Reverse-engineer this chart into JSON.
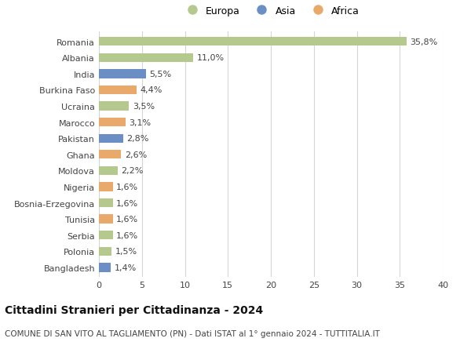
{
  "countries": [
    "Romania",
    "Albania",
    "India",
    "Burkina Faso",
    "Ucraina",
    "Marocco",
    "Pakistan",
    "Ghana",
    "Moldova",
    "Nigeria",
    "Bosnia-Erzegovina",
    "Tunisia",
    "Serbia",
    "Polonia",
    "Bangladesh"
  ],
  "values": [
    35.8,
    11.0,
    5.5,
    4.4,
    3.5,
    3.1,
    2.8,
    2.6,
    2.2,
    1.6,
    1.6,
    1.6,
    1.6,
    1.5,
    1.4
  ],
  "labels": [
    "35,8%",
    "11,0%",
    "5,5%",
    "4,4%",
    "3,5%",
    "3,1%",
    "2,8%",
    "2,6%",
    "2,2%",
    "1,6%",
    "1,6%",
    "1,6%",
    "1,6%",
    "1,5%",
    "1,4%"
  ],
  "continents": [
    "Europa",
    "Europa",
    "Asia",
    "Africa",
    "Europa",
    "Africa",
    "Asia",
    "Africa",
    "Europa",
    "Africa",
    "Europa",
    "Africa",
    "Europa",
    "Europa",
    "Asia"
  ],
  "colors": {
    "Europa": "#b5c98e",
    "Asia": "#6b8fc4",
    "Africa": "#e8a96a"
  },
  "xlim": [
    0,
    40
  ],
  "xticks": [
    0,
    5,
    10,
    15,
    20,
    25,
    30,
    35,
    40
  ],
  "title": "Cittadini Stranieri per Cittadinanza - 2024",
  "subtitle": "COMUNE DI SAN VITO AL TAGLIAMENTO (PN) - Dati ISTAT al 1° gennaio 2024 - TUTTITALIA.IT",
  "background_color": "#ffffff",
  "grid_color": "#d5d5d5",
  "bar_height": 0.55,
  "title_fontsize": 10,
  "subtitle_fontsize": 7.5,
  "tick_fontsize": 8,
  "label_fontsize": 8
}
